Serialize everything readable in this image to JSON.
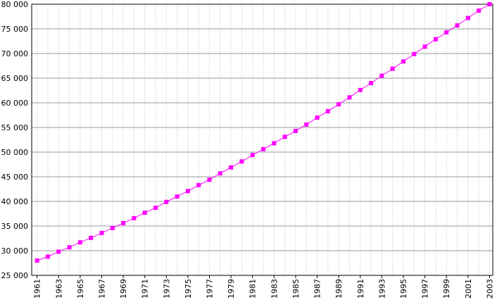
{
  "chart_data": {
    "type": "line",
    "x": [
      1961,
      1962,
      1963,
      1964,
      1965,
      1966,
      1967,
      1968,
      1969,
      1970,
      1971,
      1972,
      1973,
      1974,
      1975,
      1976,
      1977,
      1978,
      1979,
      1980,
      1981,
      1982,
      1983,
      1984,
      1985,
      1986,
      1987,
      1988,
      1989,
      1990,
      1991,
      1992,
      1993,
      1994,
      1995,
      1996,
      1997,
      1998,
      1999,
      2000,
      2001,
      2002,
      2003
    ],
    "series": [
      {
        "color": "#ff00ff",
        "values": [
          28000,
          28800,
          29800,
          30700,
          31700,
          32600,
          33600,
          34600,
          35600,
          36600,
          37700,
          38700,
          39900,
          41000,
          42100,
          43300,
          44400,
          45700,
          46900,
          48100,
          49400,
          50600,
          51800,
          53100,
          54300,
          55600,
          57000,
          58300,
          59700,
          61100,
          62600,
          64000,
          65500,
          66900,
          68400,
          69900,
          71400,
          72900,
          74300,
          75700,
          77200,
          78700,
          80000
        ]
      }
    ],
    "xlim": [
      1960.5,
      2003.3
    ],
    "xticks": [
      1961,
      1963,
      1965,
      1967,
      1969,
      1971,
      1973,
      1975,
      1977,
      1979,
      1981,
      1983,
      1985,
      1987,
      1989,
      1991,
      1993,
      1995,
      1997,
      1999,
      2001,
      2003
    ],
    "ylim": [
      25000,
      80000
    ],
    "yticks": [
      {
        "value": 25000,
        "label": "25 000"
      },
      {
        "value": 30000,
        "label": "30 000"
      },
      {
        "value": 35000,
        "label": "35 000"
      },
      {
        "value": 40000,
        "label": "40 000"
      },
      {
        "value": 45000,
        "label": "45 000"
      },
      {
        "value": 50000,
        "label": "50 000"
      },
      {
        "value": 55000,
        "label": "55 000"
      },
      {
        "value": 60000,
        "label": "60 000"
      },
      {
        "value": 65000,
        "label": "65 000"
      },
      {
        "value": 70000,
        "label": "70 000"
      },
      {
        "value": 75000,
        "label": "75 000"
      },
      {
        "value": 80000,
        "label": "80 000"
      }
    ],
    "grid": true
  }
}
